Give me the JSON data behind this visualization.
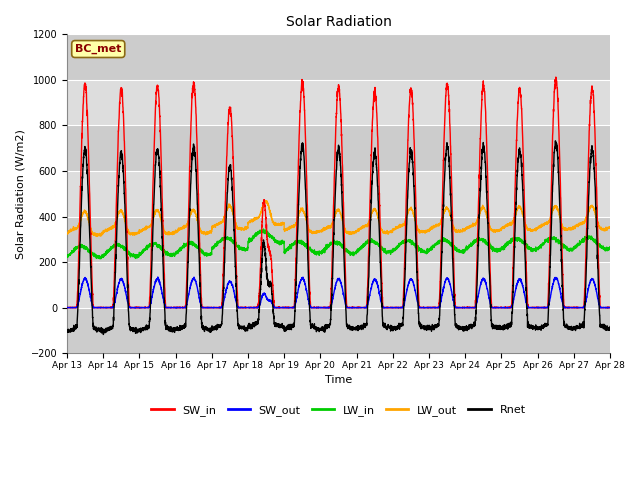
{
  "title": "Solar Radiation",
  "ylabel": "Solar Radiation (W/m2)",
  "xlabel": "Time",
  "ylim": [
    -200,
    1200
  ],
  "yticks": [
    -200,
    0,
    200,
    400,
    600,
    800,
    1000,
    1200
  ],
  "n_days": 15,
  "points_per_day": 288,
  "annotation_text": "BC_met",
  "annotation_color": "#8B0000",
  "annotation_bg": "#FFFFAA",
  "plot_bg": "#D8D8D8",
  "fig_bg": "#FFFFFF",
  "series": {
    "SW_in": {
      "color": "#FF0000",
      "lw": 1.0
    },
    "SW_out": {
      "color": "#0000FF",
      "lw": 1.0
    },
    "LW_in": {
      "color": "#00CC00",
      "lw": 1.0
    },
    "LW_out": {
      "color": "#FFA500",
      "lw": 1.0
    },
    "Rnet": {
      "color": "#000000",
      "lw": 1.0
    }
  },
  "legend_entries": [
    "SW_in",
    "SW_out",
    "LW_in",
    "LW_out",
    "Rnet"
  ],
  "legend_colors": [
    "#FF0000",
    "#0000FF",
    "#00CC00",
    "#FFA500",
    "#000000"
  ],
  "sw_peaks": [
    980,
    960,
    975,
    985,
    880,
    600,
    990,
    970,
    950,
    960,
    980,
    975,
    960,
    1005,
    965
  ],
  "lw_in_base": [
    245,
    250,
    255,
    258,
    280,
    310,
    265,
    262,
    268,
    270,
    272,
    275,
    278,
    280,
    282
  ],
  "lw_out_base": [
    335,
    338,
    340,
    342,
    360,
    380,
    345,
    342,
    345,
    348,
    350,
    352,
    355,
    358,
    360
  ]
}
